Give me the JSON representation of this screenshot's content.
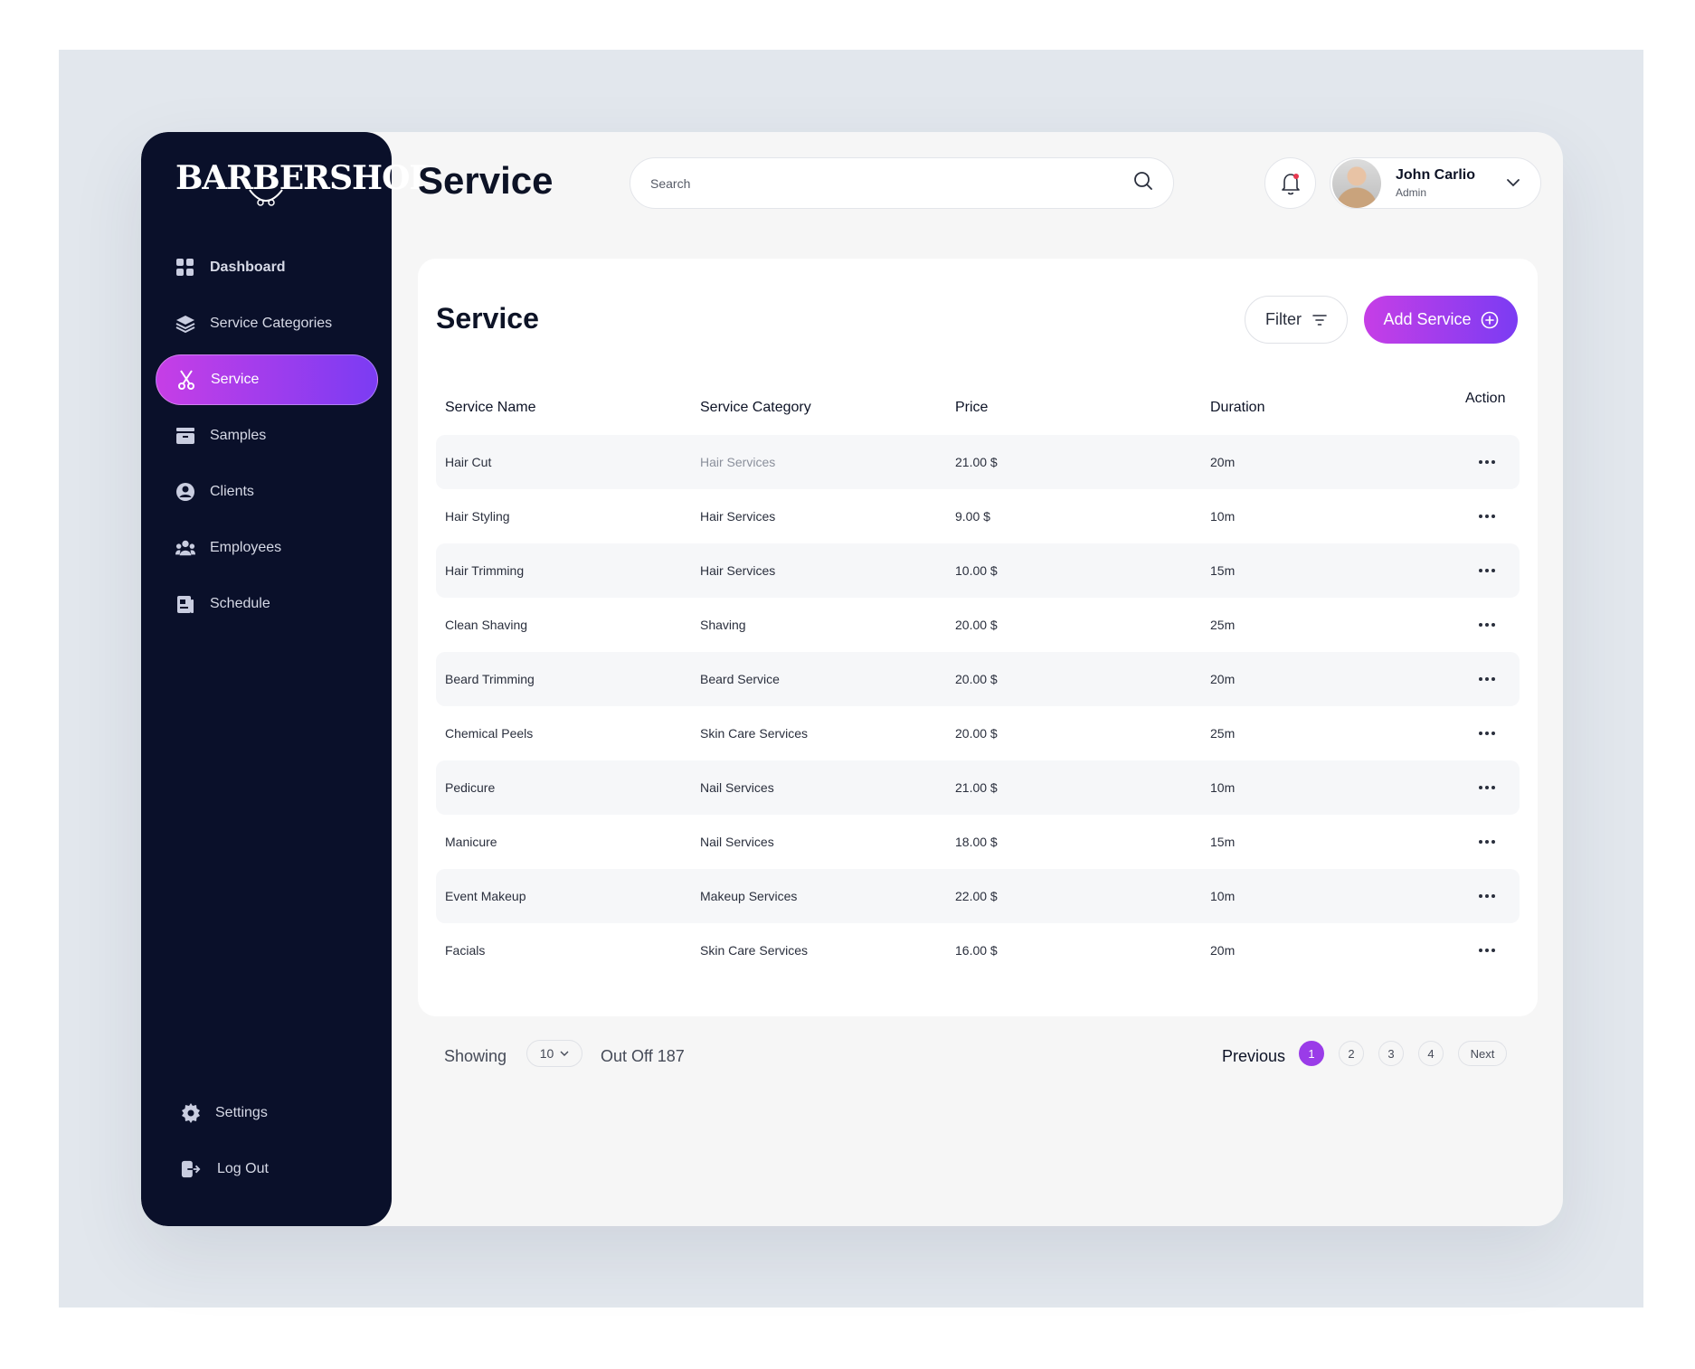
{
  "brand": {
    "logo_text": "BARBERSHOP"
  },
  "sidebar": {
    "items": [
      {
        "label": "Dashboard",
        "icon": "grid-icon"
      },
      {
        "label": "Service Categories",
        "icon": "layers-icon"
      },
      {
        "label": "Service",
        "icon": "scissors-icon",
        "active": true
      },
      {
        "label": "Samples",
        "icon": "folder-icon"
      },
      {
        "label": "Clients",
        "icon": "user-circle-icon"
      },
      {
        "label": "Employees",
        "icon": "users-icon"
      },
      {
        "label": "Schedule",
        "icon": "calendar-icon"
      }
    ],
    "bottom": [
      {
        "label": "Settings",
        "icon": "gear-icon"
      },
      {
        "label": "Log Out",
        "icon": "logout-icon"
      }
    ]
  },
  "header": {
    "title": "Service",
    "search_placeholder": "Search",
    "user": {
      "name": "John Carlio",
      "role": "Admin"
    }
  },
  "card": {
    "title": "Service",
    "filter_label": "Filter",
    "add_label": "Add Service"
  },
  "table": {
    "columns": [
      "Service Name",
      "Service Category",
      "Price",
      "Duration",
      "Action"
    ],
    "rows": [
      {
        "name": "Hair Cut",
        "category": "Hair Services",
        "price": "21.00 $",
        "duration": "20m"
      },
      {
        "name": "Hair Styling",
        "category": "Hair Services",
        "price": "9.00 $",
        "duration": "10m"
      },
      {
        "name": "Hair Trimming",
        "category": "Hair Services",
        "price": "10.00 $",
        "duration": "15m"
      },
      {
        "name": "Clean Shaving",
        "category": "Shaving",
        "price": "20.00 $",
        "duration": "25m"
      },
      {
        "name": "Beard Trimming",
        "category": "Beard Service",
        "price": "20.00 $",
        "duration": "20m"
      },
      {
        "name": "Chemical Peels",
        "category": "Skin Care Services",
        "price": "20.00 $",
        "duration": "25m"
      },
      {
        "name": "Pedicure",
        "category": "Nail Services",
        "price": "21.00 $",
        "duration": "10m"
      },
      {
        "name": "Manicure",
        "category": "Nail Services",
        "price": "18.00 $",
        "duration": "15m"
      },
      {
        "name": "Event Makeup",
        "category": "Makeup Services",
        "price": "22.00 $",
        "duration": "10m"
      },
      {
        "name": "Facials",
        "category": "Skin Care Services",
        "price": "16.00 $",
        "duration": "20m"
      }
    ]
  },
  "footer": {
    "showing_label": "Showing",
    "per_page": "10",
    "total_label": "Out Off 187",
    "prev_label": "Previous",
    "pages": [
      "1",
      "2",
      "3",
      "4"
    ],
    "current_page": "1",
    "next_label": "Next"
  },
  "colors": {
    "sidebar_bg": "#0a102a",
    "accent_start": "#c63ee6",
    "accent_end": "#7b3cf3",
    "page_bg": "#f6f6f6"
  }
}
